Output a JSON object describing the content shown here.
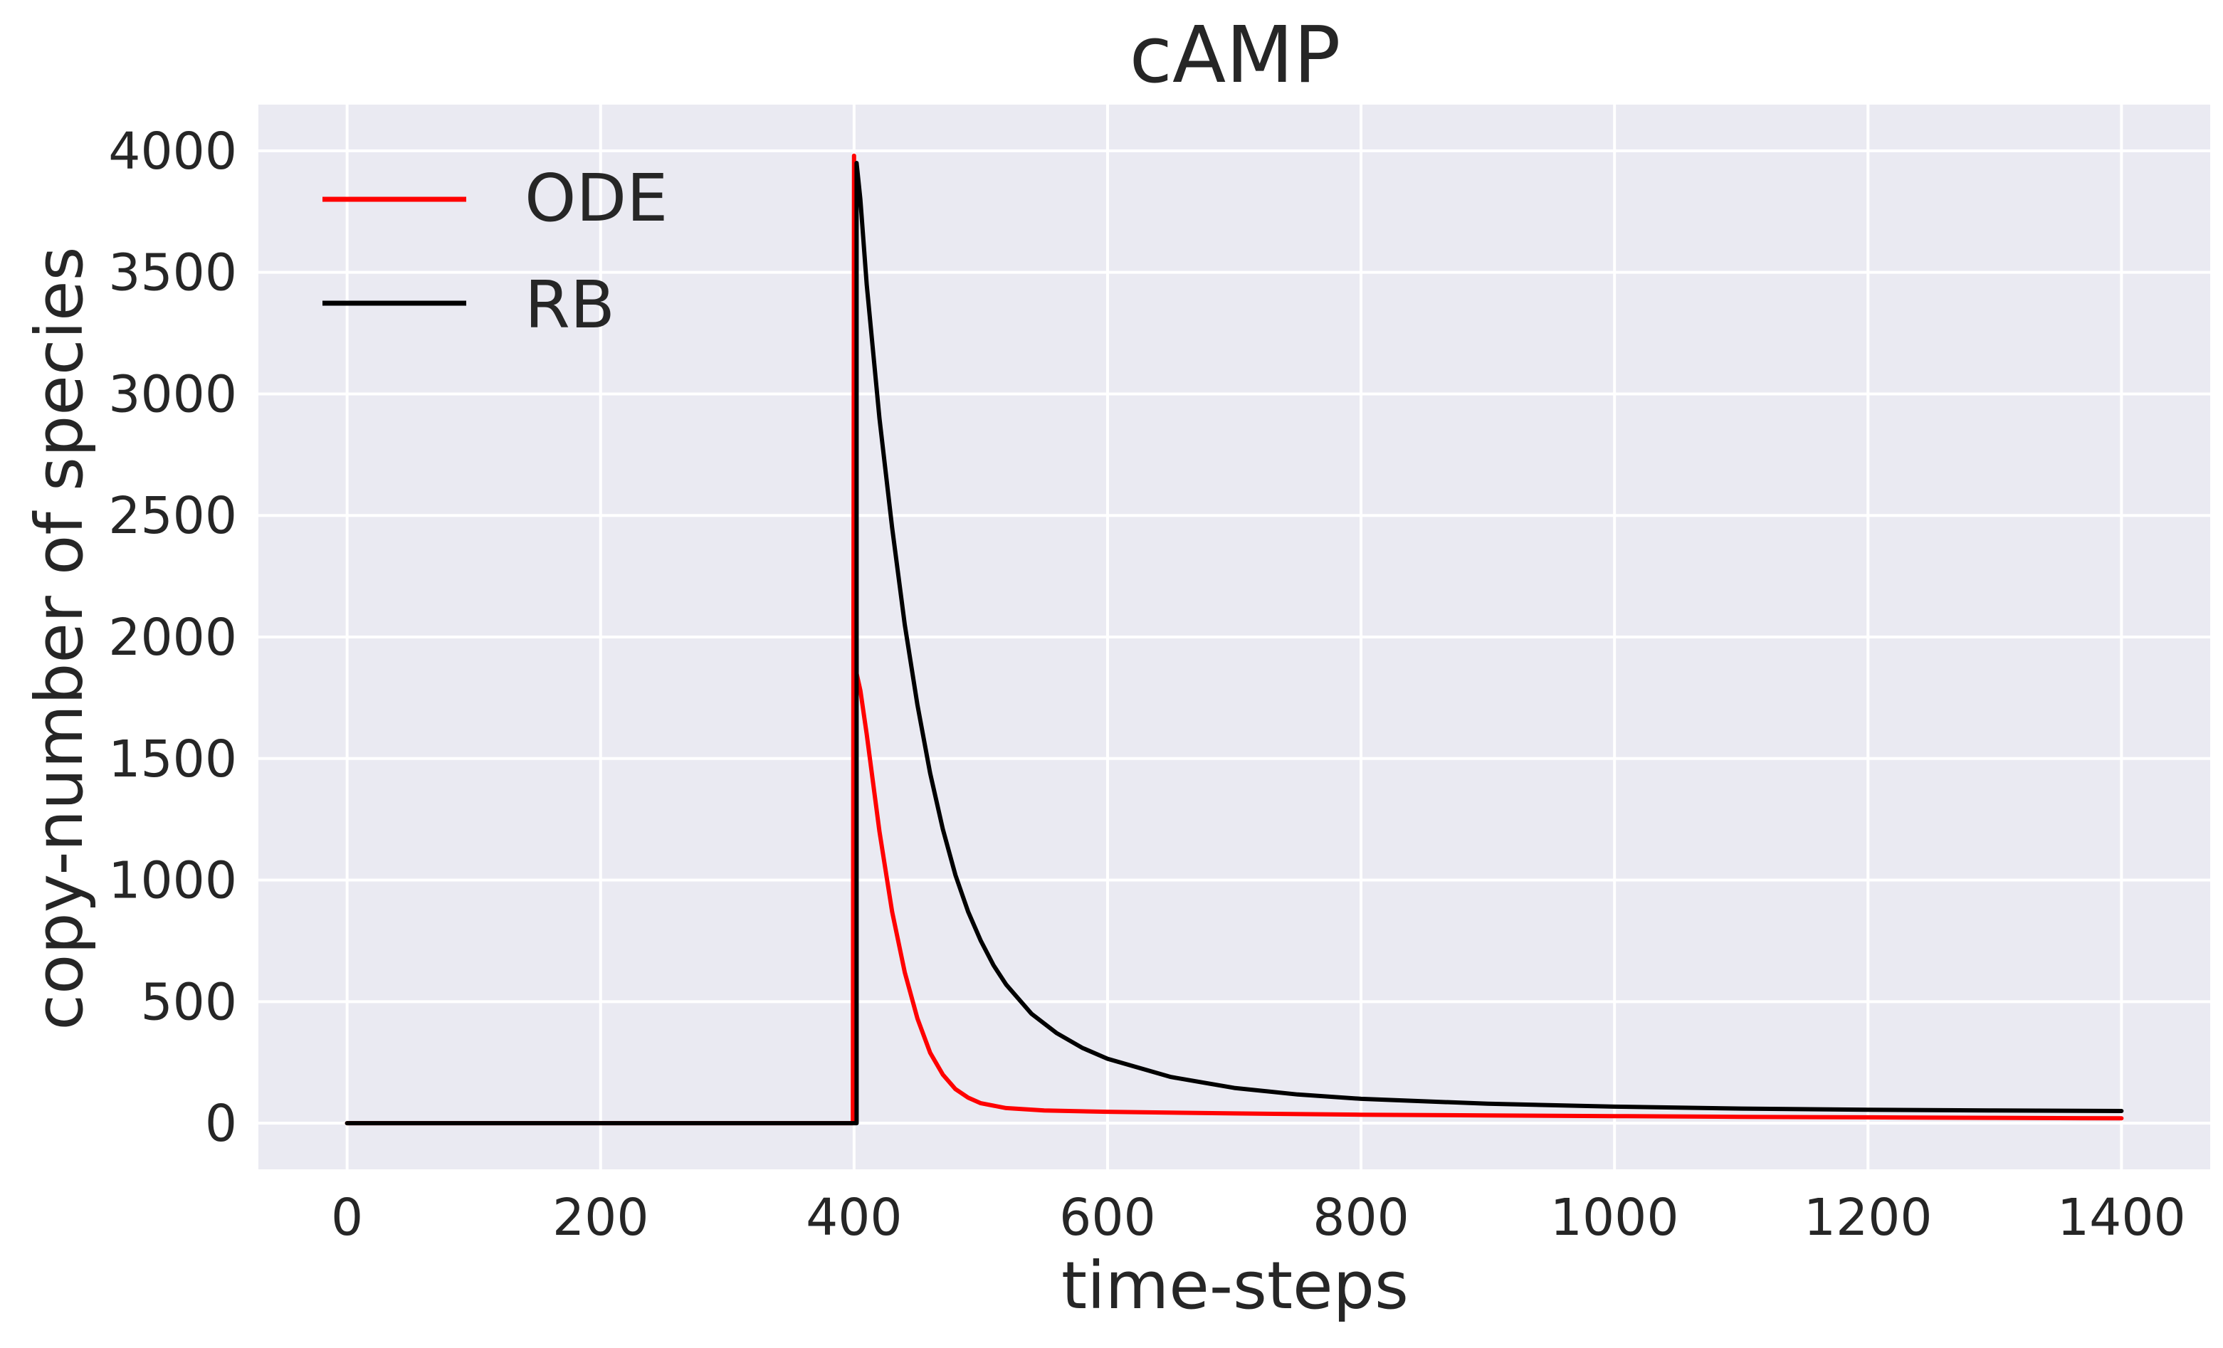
{
  "chart_data": {
    "type": "line",
    "title": "cAMP",
    "xlabel": "time-steps",
    "ylabel": "copy-number of species",
    "xlim": [
      -70,
      1470
    ],
    "ylim": [
      -190,
      4190
    ],
    "xticks": [
      0,
      200,
      400,
      600,
      800,
      1000,
      1200,
      1400
    ],
    "yticks": [
      0,
      500,
      1000,
      1500,
      2000,
      2500,
      3000,
      3500,
      4000
    ],
    "grid": true,
    "legend_position": "top-left",
    "colors": {
      "background": "#eaeaf2",
      "grid": "#ffffff",
      "text": "#262626"
    },
    "series": [
      {
        "name": "ODE",
        "color": "#ff0000",
        "points": [
          [
            0,
            0
          ],
          [
            399,
            0
          ],
          [
            400,
            3980
          ],
          [
            401,
            3000
          ],
          [
            402,
            1850
          ],
          [
            405,
            1780
          ],
          [
            410,
            1600
          ],
          [
            420,
            1200
          ],
          [
            430,
            870
          ],
          [
            440,
            620
          ],
          [
            450,
            430
          ],
          [
            460,
            290
          ],
          [
            470,
            200
          ],
          [
            480,
            140
          ],
          [
            490,
            105
          ],
          [
            500,
            82
          ],
          [
            520,
            62
          ],
          [
            550,
            52
          ],
          [
            600,
            47
          ],
          [
            700,
            40
          ],
          [
            800,
            35
          ],
          [
            900,
            32
          ],
          [
            1000,
            29
          ],
          [
            1100,
            26
          ],
          [
            1200,
            24
          ],
          [
            1300,
            22
          ],
          [
            1400,
            20
          ]
        ]
      },
      {
        "name": "RB",
        "color": "#000000",
        "points": [
          [
            0,
            0
          ],
          [
            402,
            0
          ],
          [
            402,
            3950
          ],
          [
            405,
            3800
          ],
          [
            410,
            3450
          ],
          [
            420,
            2900
          ],
          [
            430,
            2450
          ],
          [
            440,
            2050
          ],
          [
            450,
            1720
          ],
          [
            460,
            1440
          ],
          [
            470,
            1210
          ],
          [
            480,
            1020
          ],
          [
            490,
            870
          ],
          [
            500,
            750
          ],
          [
            510,
            650
          ],
          [
            520,
            570
          ],
          [
            540,
            450
          ],
          [
            560,
            370
          ],
          [
            580,
            310
          ],
          [
            600,
            265
          ],
          [
            650,
            190
          ],
          [
            700,
            145
          ],
          [
            750,
            118
          ],
          [
            800,
            100
          ],
          [
            900,
            80
          ],
          [
            1000,
            68
          ],
          [
            1100,
            60
          ],
          [
            1200,
            55
          ],
          [
            1300,
            52
          ],
          [
            1400,
            50
          ]
        ]
      }
    ]
  }
}
